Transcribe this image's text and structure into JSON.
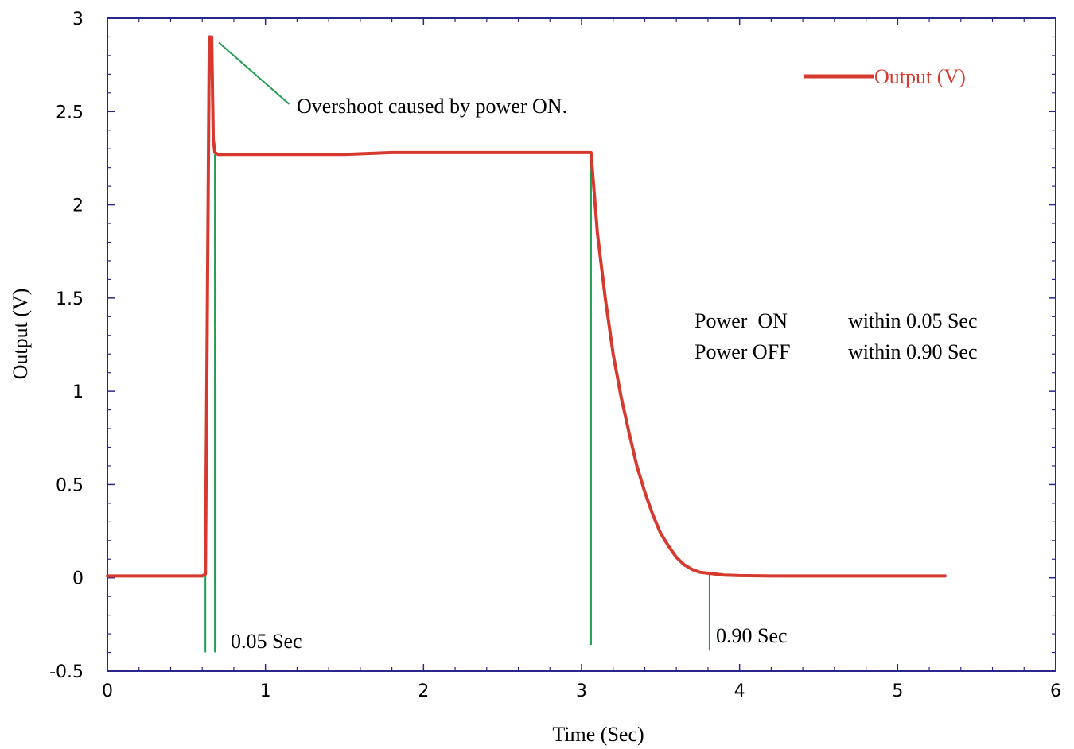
{
  "chart_data": {
    "type": "line",
    "title": "",
    "xlabel": "Time (Sec)",
    "ylabel": "Output (V)",
    "xlim": [
      0,
      6
    ],
    "ylim": [
      -0.5,
      3
    ],
    "x_ticks": [
      0,
      1,
      2,
      3,
      4,
      5,
      6
    ],
    "x_tick_labels": [
      "0",
      "1",
      "2",
      "3",
      "4",
      "5",
      "6"
    ],
    "y_ticks": [
      -0.5,
      0,
      0.5,
      1,
      1.5,
      2,
      2.5,
      3
    ],
    "y_tick_labels": [
      "-0.5",
      "0",
      "0.5",
      "1",
      "1.5",
      "2",
      "2.5",
      "3"
    ],
    "grid": false,
    "legend_position": "top-right",
    "colors": {
      "series": "#d63a2f",
      "annotation_lines": "#1e9e4e",
      "frame": "#28288c"
    },
    "series": [
      {
        "name": "Output (V)",
        "x": [
          0,
          0.3,
          0.6,
          0.62,
          0.64,
          0.645,
          0.66,
          0.67,
          0.68,
          0.7,
          0.8,
          1.0,
          1.2,
          1.5,
          1.8,
          2.0,
          2.2,
          2.5,
          2.8,
          3.0,
          3.06,
          3.1,
          3.15,
          3.2,
          3.25,
          3.3,
          3.35,
          3.4,
          3.45,
          3.5,
          3.55,
          3.6,
          3.65,
          3.7,
          3.75,
          3.8,
          3.85,
          3.9,
          4.0,
          4.2,
          4.5,
          4.8,
          5.0,
          5.3
        ],
        "y": [
          0.01,
          0.01,
          0.01,
          0.02,
          2.3,
          2.9,
          2.9,
          2.35,
          2.28,
          2.27,
          2.27,
          2.27,
          2.27,
          2.27,
          2.28,
          2.28,
          2.28,
          2.28,
          2.28,
          2.28,
          2.28,
          1.85,
          1.5,
          1.2,
          0.97,
          0.78,
          0.6,
          0.46,
          0.34,
          0.24,
          0.17,
          0.11,
          0.07,
          0.045,
          0.03,
          0.025,
          0.02,
          0.015,
          0.012,
          0.01,
          0.01,
          0.01,
          0.01,
          0.01
        ]
      }
    ],
    "annotations": {
      "overshoot_label": "Overshoot caused by power ON.",
      "on_time_label": "0.05 Sec",
      "off_time_label": "0.90 Sec",
      "power_on_label": "Power  ON",
      "power_on_value": "within 0.05 Sec",
      "power_off_label": "Power OFF",
      "power_off_value": "within 0.90 Sec",
      "vline_times": [
        0.62,
        0.68,
        3.06,
        3.81
      ]
    }
  }
}
